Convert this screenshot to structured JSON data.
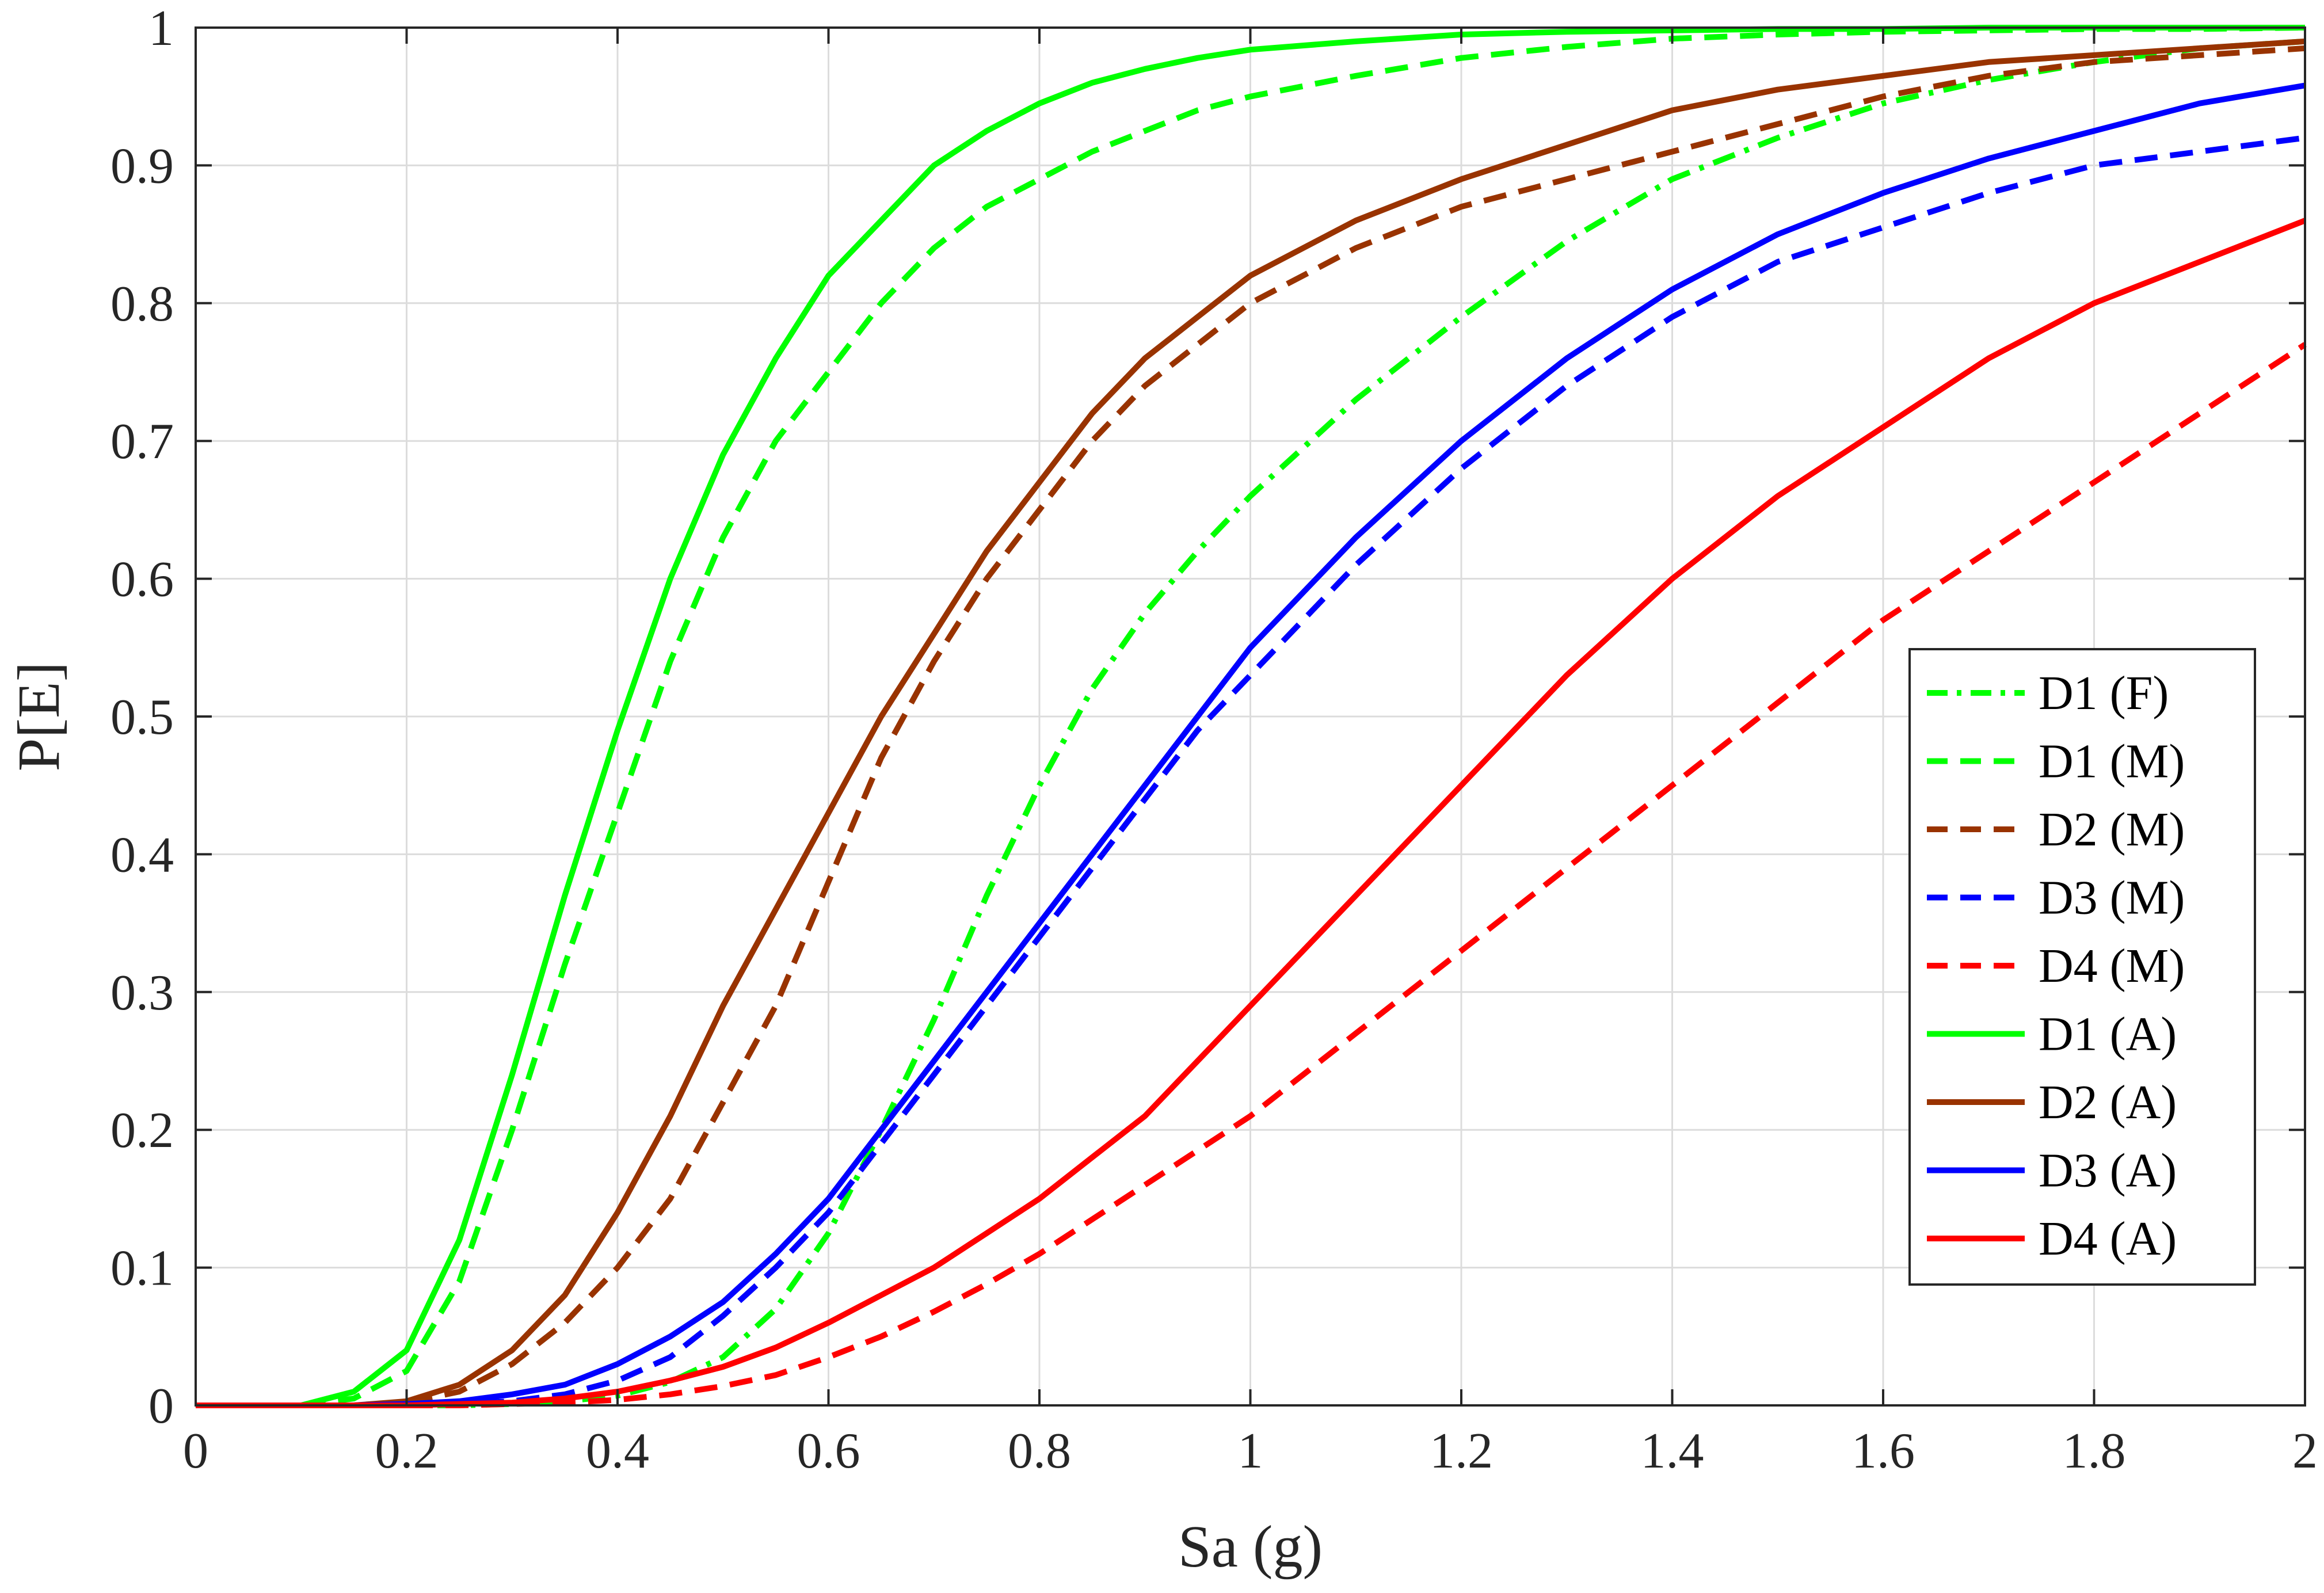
{
  "chart_data": {
    "type": "line",
    "title": "",
    "xlabel": "Sa (g)",
    "ylabel": "P[E]",
    "xlim": [
      0,
      2
    ],
    "ylim": [
      0,
      1
    ],
    "grid": true,
    "legend_position": "right",
    "x_ticks": [
      "0",
      "0.2",
      "0.4",
      "0.6",
      "0.8",
      "1",
      "1.2",
      "1.4",
      "1.6",
      "1.8",
      "2"
    ],
    "y_ticks": [
      "0",
      "0.1",
      "0.2",
      "0.3",
      "0.4",
      "0.5",
      "0.6",
      "0.7",
      "0.8",
      "0.9",
      "1"
    ],
    "x": [
      0,
      0.1,
      0.15,
      0.2,
      0.25,
      0.3,
      0.35,
      0.4,
      0.45,
      0.5,
      0.55,
      0.6,
      0.65,
      0.7,
      0.75,
      0.8,
      0.85,
      0.9,
      0.95,
      1.0,
      1.1,
      1.2,
      1.3,
      1.4,
      1.5,
      1.6,
      1.7,
      1.8,
      1.9,
      2.0
    ],
    "series": [
      {
        "name": "D1 (F)",
        "color": "#00ff00",
        "dash": "dashdot",
        "values": [
          0,
          0,
          0,
          0,
          0,
          0.001,
          0.003,
          0.007,
          0.017,
          0.035,
          0.07,
          0.125,
          0.2,
          0.28,
          0.37,
          0.45,
          0.52,
          0.575,
          0.62,
          0.66,
          0.73,
          0.79,
          0.845,
          0.89,
          0.92,
          0.945,
          0.962,
          0.975,
          0.985,
          0.99
        ]
      },
      {
        "name": "D1 (M)",
        "color": "#00ff00",
        "dash": "dashed",
        "values": [
          0,
          0,
          0.005,
          0.025,
          0.09,
          0.2,
          0.32,
          0.43,
          0.54,
          0.63,
          0.7,
          0.75,
          0.8,
          0.84,
          0.87,
          0.89,
          0.91,
          0.925,
          0.94,
          0.95,
          0.965,
          0.978,
          0.986,
          0.992,
          0.995,
          0.997,
          0.998,
          0.999,
          0.999,
          1.0
        ]
      },
      {
        "name": "D2 (M)",
        "color": "#993300",
        "dash": "dashed",
        "values": [
          0,
          0,
          0,
          0.002,
          0.01,
          0.03,
          0.06,
          0.1,
          0.15,
          0.22,
          0.29,
          0.38,
          0.47,
          0.54,
          0.6,
          0.65,
          0.7,
          0.74,
          0.77,
          0.8,
          0.84,
          0.87,
          0.89,
          0.91,
          0.93,
          0.95,
          0.965,
          0.975,
          0.98,
          0.985
        ]
      },
      {
        "name": "D3 (M)",
        "color": "#0000ff",
        "dash": "dashed",
        "values": [
          0,
          0,
          0,
          0,
          0.001,
          0.003,
          0.008,
          0.018,
          0.035,
          0.065,
          0.1,
          0.14,
          0.19,
          0.24,
          0.29,
          0.34,
          0.39,
          0.44,
          0.49,
          0.53,
          0.61,
          0.68,
          0.74,
          0.79,
          0.83,
          0.855,
          0.88,
          0.9,
          0.91,
          0.92
        ]
      },
      {
        "name": "D4 (M)",
        "color": "#ff0000",
        "dash": "dashed",
        "values": [
          0,
          0,
          0,
          0,
          0,
          0.001,
          0.002,
          0.004,
          0.008,
          0.014,
          0.022,
          0.035,
          0.05,
          0.068,
          0.088,
          0.11,
          0.135,
          0.16,
          0.185,
          0.21,
          0.27,
          0.33,
          0.39,
          0.45,
          0.51,
          0.57,
          0.62,
          0.67,
          0.72,
          0.77
        ]
      },
      {
        "name": "D1 (A)",
        "color": "#00ff00",
        "dash": "solid",
        "values": [
          0,
          0,
          0.01,
          0.04,
          0.12,
          0.24,
          0.37,
          0.49,
          0.6,
          0.69,
          0.76,
          0.82,
          0.86,
          0.9,
          0.925,
          0.945,
          0.96,
          0.97,
          0.978,
          0.984,
          0.99,
          0.995,
          0.997,
          0.998,
          0.999,
          0.999,
          1.0,
          1.0,
          1.0,
          1.0
        ]
      },
      {
        "name": "D2 (A)",
        "color": "#993300",
        "dash": "solid",
        "values": [
          0,
          0,
          0,
          0.003,
          0.015,
          0.04,
          0.08,
          0.14,
          0.21,
          0.29,
          0.36,
          0.43,
          0.5,
          0.56,
          0.62,
          0.67,
          0.72,
          0.76,
          0.79,
          0.82,
          0.86,
          0.89,
          0.915,
          0.94,
          0.955,
          0.965,
          0.975,
          0.98,
          0.985,
          0.99
        ]
      },
      {
        "name": "D3 (A)",
        "color": "#0000ff",
        "dash": "solid",
        "values": [
          0,
          0,
          0,
          0.001,
          0.003,
          0.008,
          0.015,
          0.03,
          0.05,
          0.075,
          0.11,
          0.15,
          0.2,
          0.25,
          0.3,
          0.35,
          0.4,
          0.45,
          0.5,
          0.55,
          0.63,
          0.7,
          0.76,
          0.81,
          0.85,
          0.88,
          0.905,
          0.925,
          0.945,
          0.958
        ]
      },
      {
        "name": "D4 (A)",
        "color": "#ff0000",
        "dash": "solid",
        "values": [
          0,
          0,
          0,
          0,
          0.001,
          0.002,
          0.005,
          0.01,
          0.018,
          0.028,
          0.042,
          0.06,
          0.08,
          0.1,
          0.125,
          0.15,
          0.18,
          0.21,
          0.25,
          0.29,
          0.37,
          0.45,
          0.53,
          0.6,
          0.66,
          0.71,
          0.76,
          0.8,
          0.83,
          0.86
        ]
      }
    ]
  }
}
